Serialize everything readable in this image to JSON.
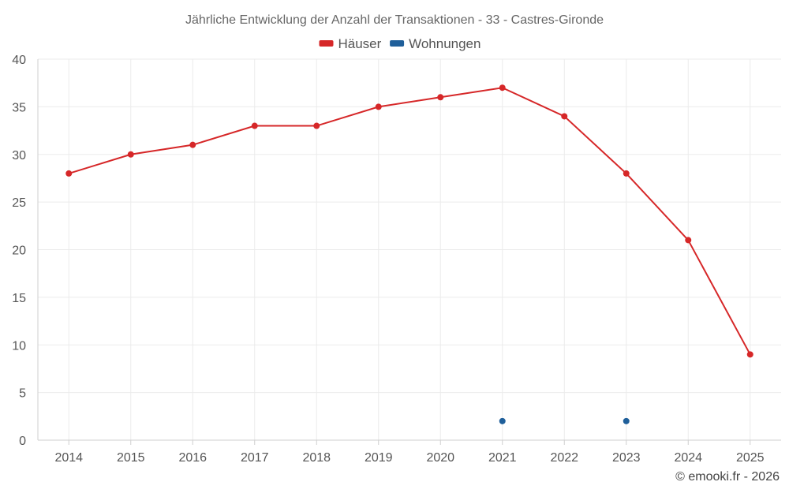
{
  "chart_data": {
    "type": "line",
    "title": "Jährliche Entwicklung der Anzahl der Transaktionen - 33 - Castres-Gironde",
    "categories": [
      "2014",
      "2015",
      "2016",
      "2017",
      "2018",
      "2019",
      "2020",
      "2021",
      "2022",
      "2023",
      "2024",
      "2025"
    ],
    "ylim": [
      0,
      40
    ],
    "yticks": [
      0,
      5,
      10,
      15,
      20,
      25,
      30,
      35,
      40
    ],
    "grid": true,
    "legend_position": "top-center",
    "series": [
      {
        "name": "Häuser",
        "color": "#d62728",
        "values": [
          28,
          30,
          31,
          33,
          33,
          35,
          36,
          37,
          34,
          28,
          21,
          9
        ]
      },
      {
        "name": "Wohnungen",
        "color": "#1f5f9a",
        "values": [
          null,
          null,
          null,
          null,
          null,
          null,
          null,
          2,
          null,
          2,
          null,
          null
        ]
      }
    ]
  },
  "credit": "© emooki.fr - 2026"
}
